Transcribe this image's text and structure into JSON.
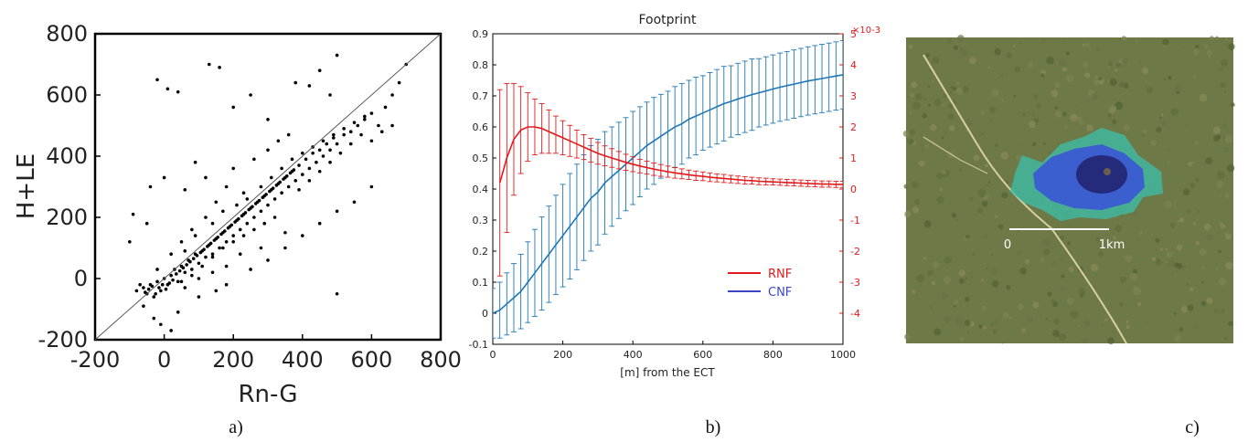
{
  "panels": {
    "a": {
      "label": "a)"
    },
    "b": {
      "label": "b)"
    },
    "c": {
      "label": "c)",
      "scale_start": "0",
      "scale_end": "1km"
    }
  },
  "chart_data": [
    {
      "type": "scatter",
      "xlabel": "Rn-G",
      "ylabel": "H+LE",
      "xlim": [
        -200,
        800
      ],
      "ylim": [
        -200,
        800
      ],
      "xticks": [
        -200,
        0,
        200,
        400,
        600,
        800
      ],
      "yticks": [
        -200,
        0,
        200,
        400,
        600,
        800
      ],
      "reference_line": "1:1",
      "marker_color": "#000000",
      "points": [
        [
          -80,
          -40
        ],
        [
          -60,
          -30
        ],
        [
          -50,
          -50
        ],
        [
          -40,
          -20
        ],
        [
          -30,
          -60
        ],
        [
          -20,
          -10
        ],
        [
          -10,
          -40
        ],
        [
          0,
          0
        ],
        [
          10,
          -20
        ],
        [
          20,
          10
        ],
        [
          30,
          30
        ],
        [
          40,
          -10
        ],
        [
          50,
          40
        ],
        [
          60,
          20
        ],
        [
          70,
          60
        ],
        [
          80,
          30
        ],
        [
          90,
          80
        ],
        [
          100,
          50
        ],
        [
          110,
          90
        ],
        [
          120,
          70
        ],
        [
          130,
          110
        ],
        [
          140,
          80
        ],
        [
          150,
          130
        ],
        [
          160,
          100
        ],
        [
          170,
          150
        ],
        [
          180,
          120
        ],
        [
          190,
          170
        ],
        [
          200,
          140
        ],
        [
          210,
          190
        ],
        [
          220,
          160
        ],
        [
          230,
          210
        ],
        [
          240,
          180
        ],
        [
          250,
          230
        ],
        [
          260,
          200
        ],
        [
          270,
          250
        ],
        [
          280,
          220
        ],
        [
          290,
          270
        ],
        [
          300,
          240
        ],
        [
          310,
          290
        ],
        [
          320,
          260
        ],
        [
          330,
          310
        ],
        [
          340,
          280
        ],
        [
          350,
          330
        ],
        [
          360,
          300
        ],
        [
          370,
          350
        ],
        [
          380,
          320
        ],
        [
          390,
          370
        ],
        [
          400,
          340
        ],
        [
          410,
          390
        ],
        [
          420,
          360
        ],
        [
          430,
          410
        ],
        [
          440,
          380
        ],
        [
          450,
          420
        ],
        [
          460,
          400
        ],
        [
          470,
          440
        ],
        [
          480,
          420
        ],
        [
          490,
          460
        ],
        [
          500,
          440
        ],
        [
          520,
          470
        ],
        [
          540,
          480
        ],
        [
          560,
          500
        ],
        [
          580,
          520
        ],
        [
          600,
          540
        ],
        [
          620,
          500
        ],
        [
          640,
          560
        ],
        [
          660,
          600
        ],
        [
          680,
          640
        ],
        [
          700,
          700
        ],
        [
          -40,
          300
        ],
        [
          -20,
          650
        ],
        [
          10,
          620
        ],
        [
          40,
          610
        ],
        [
          130,
          700
        ],
        [
          160,
          690
        ],
        [
          200,
          560
        ],
        [
          250,
          600
        ],
        [
          300,
          520
        ],
        [
          380,
          640
        ],
        [
          420,
          630
        ],
        [
          450,
          680
        ],
        [
          500,
          730
        ],
        [
          480,
          600
        ],
        [
          -50,
          180
        ],
        [
          -90,
          210
        ],
        [
          -100,
          120
        ],
        [
          0,
          330
        ],
        [
          60,
          290
        ],
        [
          90,
          380
        ],
        [
          120,
          330
        ],
        [
          200,
          360
        ],
        [
          260,
          390
        ],
        [
          300,
          420
        ],
        [
          330,
          450
        ],
        [
          360,
          470
        ],
        [
          100,
          -60
        ],
        [
          150,
          -40
        ],
        [
          180,
          -20
        ],
        [
          250,
          30
        ],
        [
          300,
          60
        ],
        [
          350,
          100
        ],
        [
          400,
          140
        ],
        [
          450,
          180
        ],
        [
          500,
          220
        ],
        [
          500,
          -50
        ],
        [
          550,
          250
        ],
        [
          600,
          300
        ],
        [
          350,
          150
        ],
        [
          280,
          100
        ],
        [
          220,
          80
        ],
        [
          180,
          40
        ],
        [
          140,
          20
        ],
        [
          100,
          0
        ],
        [
          60,
          -30
        ],
        [
          -30,
          -130
        ],
        [
          -10,
          -150
        ],
        [
          20,
          -170
        ],
        [
          -60,
          -90
        ],
        [
          40,
          -110
        ],
        [
          150,
          250
        ],
        [
          180,
          300
        ],
        [
          230,
          280
        ],
        [
          120,
          200
        ],
        [
          80,
          160
        ],
        [
          50,
          120
        ],
        [
          20,
          80
        ],
        [
          -20,
          30
        ],
        [
          60,
          90
        ],
        [
          90,
          140
        ],
        [
          140,
          180
        ],
        [
          170,
          220
        ],
        [
          210,
          240
        ],
        [
          240,
          260
        ],
        [
          280,
          300
        ],
        [
          310,
          330
        ],
        [
          340,
          360
        ],
        [
          370,
          390
        ],
        [
          400,
          410
        ],
        [
          430,
          430
        ],
        [
          460,
          450
        ],
        [
          490,
          470
        ],
        [
          520,
          490
        ],
        [
          550,
          510
        ],
        [
          580,
          530
        ],
        [
          390,
          290
        ],
        [
          420,
          320
        ],
        [
          450,
          350
        ],
        [
          480,
          380
        ],
        [
          510,
          410
        ],
        [
          540,
          440
        ],
        [
          570,
          470
        ],
        [
          600,
          450
        ],
        [
          630,
          480
        ],
        [
          660,
          500
        ],
        [
          320,
          200
        ],
        [
          290,
          180
        ],
        [
          260,
          160
        ],
        [
          230,
          140
        ],
        [
          200,
          120
        ],
        [
          170,
          100
        ],
        [
          140,
          70
        ],
        [
          110,
          40
        ],
        [
          80,
          10
        ],
        [
          50,
          -10
        ],
        [
          -70,
          -20
        ],
        [
          -55,
          -45
        ],
        [
          -45,
          -35
        ],
        [
          -35,
          -25
        ],
        [
          -25,
          -50
        ],
        [
          -15,
          -30
        ],
        [
          -5,
          -20
        ],
        [
          5,
          -35
        ],
        [
          15,
          -15
        ],
        [
          25,
          -5
        ],
        [
          35,
          15
        ],
        [
          45,
          25
        ],
        [
          55,
          35
        ],
        [
          65,
          45
        ],
        [
          75,
          55
        ],
        [
          85,
          65
        ],
        [
          95,
          75
        ],
        [
          105,
          85
        ],
        [
          115,
          95
        ],
        [
          125,
          105
        ],
        [
          135,
          115
        ],
        [
          145,
          125
        ],
        [
          155,
          135
        ],
        [
          165,
          145
        ],
        [
          175,
          155
        ],
        [
          185,
          165
        ],
        [
          195,
          175
        ],
        [
          205,
          185
        ],
        [
          215,
          195
        ],
        [
          225,
          205
        ],
        [
          235,
          215
        ],
        [
          245,
          225
        ],
        [
          255,
          235
        ],
        [
          265,
          245
        ],
        [
          275,
          255
        ],
        [
          285,
          265
        ],
        [
          295,
          275
        ],
        [
          305,
          285
        ],
        [
          315,
          295
        ],
        [
          325,
          305
        ],
        [
          335,
          315
        ],
        [
          345,
          325
        ],
        [
          355,
          335
        ],
        [
          365,
          345
        ],
        [
          375,
          355
        ]
      ]
    },
    {
      "type": "line",
      "title": "Footprint",
      "xlabel": "[m] from the ECT",
      "xlim": [
        0,
        1000
      ],
      "xticks": [
        0,
        200,
        400,
        600,
        800,
        1000
      ],
      "ylim": [
        -0.1,
        0.9
      ],
      "yticks": [
        -0.1,
        0,
        0.1,
        0.2,
        0.3,
        0.4,
        0.5,
        0.6,
        0.7,
        0.8,
        0.9
      ],
      "y2lim": [
        -5,
        5
      ],
      "y2ticks": [
        -4,
        -3,
        -2,
        -1,
        0,
        1,
        2,
        3,
        4,
        5
      ],
      "y2_exponent": "×10-3",
      "legend_position": "lower-right",
      "series": [
        {
          "name": "CNF",
          "axis": "left",
          "color": "#1f77b4",
          "legend_color": "#3b46c4",
          "x": [
            0,
            20,
            40,
            60,
            80,
            100,
            120,
            140,
            160,
            180,
            200,
            220,
            240,
            260,
            280,
            300,
            320,
            340,
            360,
            380,
            400,
            420,
            440,
            460,
            480,
            500,
            520,
            540,
            560,
            580,
            600,
            620,
            640,
            660,
            680,
            700,
            720,
            740,
            760,
            780,
            800,
            820,
            840,
            860,
            880,
            900,
            920,
            940,
            960,
            980,
            1000
          ],
          "y": [
            0.0,
            0.01,
            0.03,
            0.05,
            0.07,
            0.1,
            0.13,
            0.16,
            0.19,
            0.22,
            0.25,
            0.28,
            0.31,
            0.34,
            0.37,
            0.39,
            0.42,
            0.44,
            0.46,
            0.48,
            0.5,
            0.52,
            0.54,
            0.555,
            0.57,
            0.585,
            0.6,
            0.61,
            0.625,
            0.635,
            0.645,
            0.655,
            0.665,
            0.675,
            0.682,
            0.69,
            0.697,
            0.704,
            0.71,
            0.716,
            0.722,
            0.728,
            0.733,
            0.738,
            0.743,
            0.748,
            0.752,
            0.756,
            0.76,
            0.764,
            0.768
          ],
          "err": [
            0.08,
            0.09,
            0.1,
            0.11,
            0.12,
            0.13,
            0.14,
            0.15,
            0.155,
            0.16,
            0.165,
            0.17,
            0.17,
            0.17,
            0.17,
            0.17,
            0.165,
            0.16,
            0.155,
            0.15,
            0.15,
            0.145,
            0.14,
            0.14,
            0.135,
            0.13,
            0.13,
            0.13,
            0.125,
            0.125,
            0.12,
            0.12,
            0.12,
            0.12,
            0.115,
            0.115,
            0.115,
            0.115,
            0.11,
            0.11,
            0.11,
            0.11,
            0.11,
            0.11,
            0.11,
            0.11,
            0.11,
            0.11,
            0.11,
            0.11,
            0.11
          ]
        },
        {
          "name": "RNF",
          "axis": "right",
          "color": "#e31a1c",
          "x": [
            20,
            40,
            60,
            80,
            100,
            120,
            140,
            160,
            180,
            200,
            220,
            240,
            260,
            280,
            300,
            320,
            340,
            360,
            380,
            400,
            420,
            440,
            460,
            480,
            500,
            520,
            540,
            560,
            580,
            600,
            620,
            640,
            660,
            680,
            700,
            720,
            740,
            760,
            780,
            800,
            820,
            840,
            860,
            880,
            900,
            920,
            940,
            960,
            980,
            1000
          ],
          "y": [
            0.2,
            1.0,
            1.6,
            1.9,
            2.0,
            2.0,
            1.95,
            1.85,
            1.75,
            1.65,
            1.55,
            1.45,
            1.35,
            1.25,
            1.15,
            1.07,
            1.0,
            0.93,
            0.86,
            0.8,
            0.74,
            0.69,
            0.64,
            0.6,
            0.56,
            0.52,
            0.49,
            0.46,
            0.43,
            0.41,
            0.38,
            0.36,
            0.34,
            0.32,
            0.3,
            0.28,
            0.27,
            0.25,
            0.24,
            0.23,
            0.22,
            0.21,
            0.2,
            0.19,
            0.18,
            0.17,
            0.16,
            0.16,
            0.15,
            0.15
          ],
          "err": [
            3.0,
            2.4,
            1.8,
            1.4,
            1.1,
            0.9,
            0.8,
            0.7,
            0.6,
            0.55,
            0.5,
            0.45,
            0.4,
            0.38,
            0.35,
            0.32,
            0.3,
            0.28,
            0.26,
            0.24,
            0.22,
            0.21,
            0.2,
            0.19,
            0.18,
            0.17,
            0.16,
            0.15,
            0.15,
            0.14,
            0.14,
            0.13,
            0.13,
            0.12,
            0.12,
            0.12,
            0.11,
            0.11,
            0.11,
            0.1,
            0.1,
            0.1,
            0.1,
            0.1,
            0.1,
            0.1,
            0.1,
            0.1,
            0.1,
            0.1
          ]
        }
      ]
    }
  ]
}
